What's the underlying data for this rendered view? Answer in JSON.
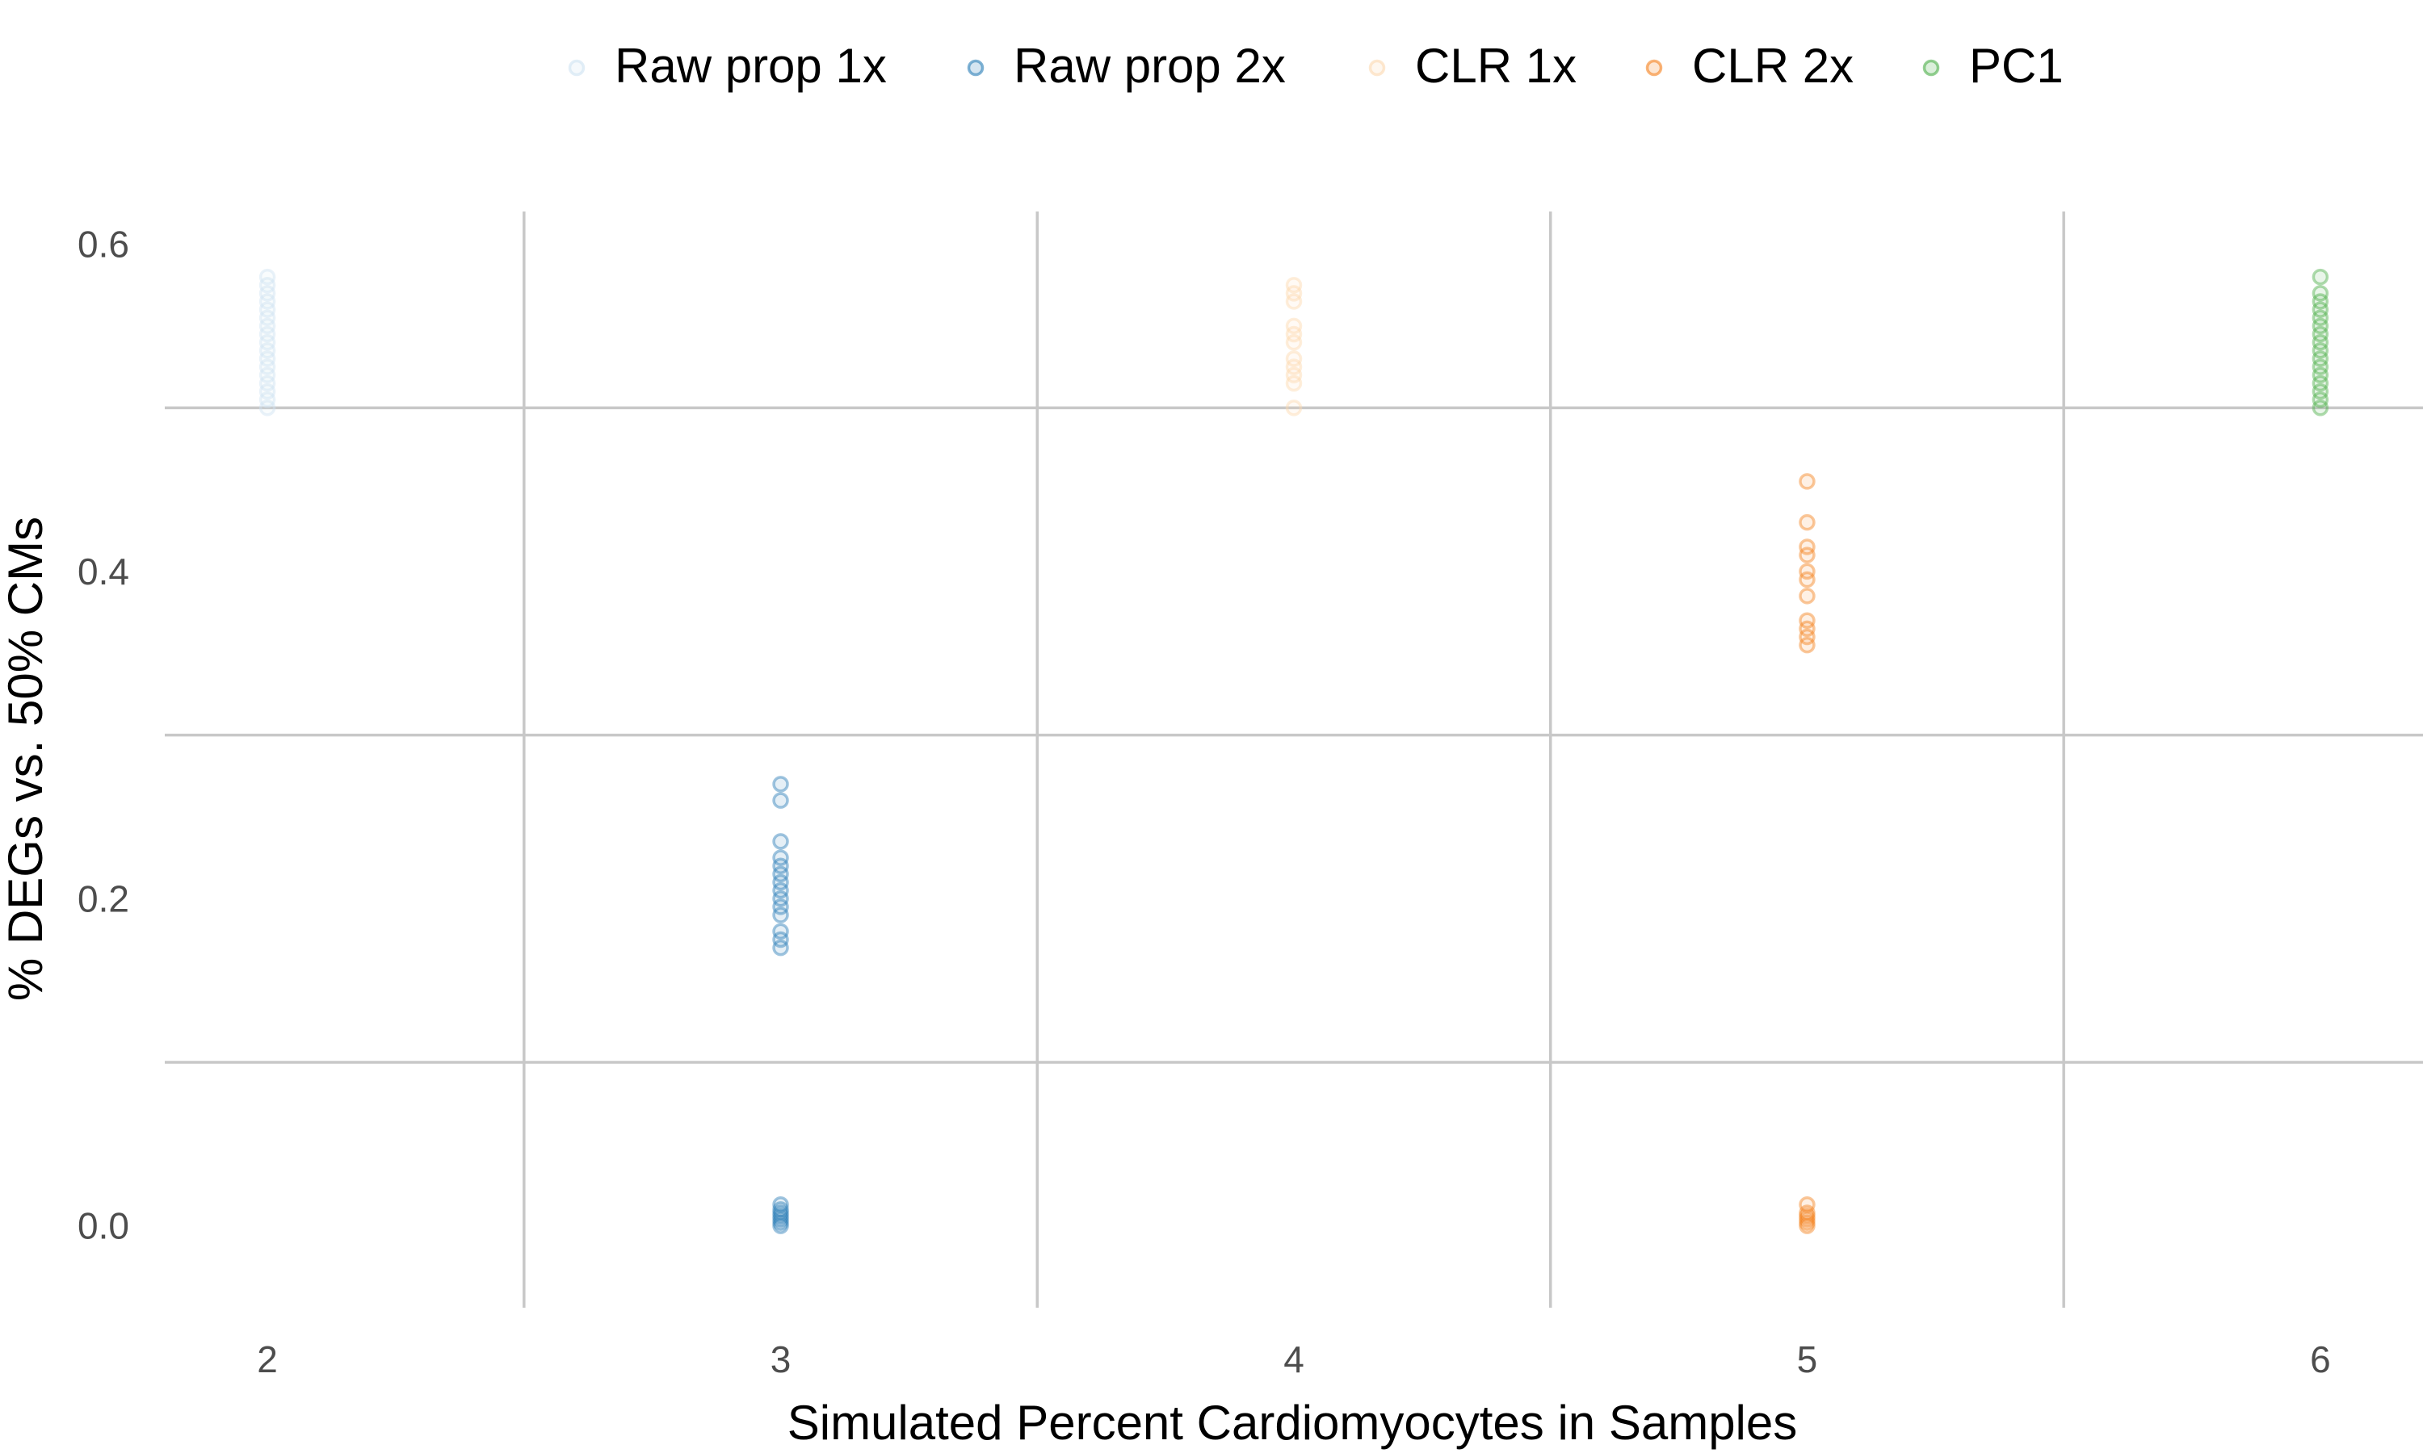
{
  "chart_data": {
    "type": "scatter",
    "title": "",
    "xlabel": "Simulated Percent Cardiomyocytes in Samples",
    "ylabel": "% DEGs vs. 50% CMs",
    "x_ticks": [
      "2",
      "3",
      "4",
      "5",
      "6"
    ],
    "y_ticks": [
      "0.0",
      "0.2",
      "0.4",
      "0.6"
    ],
    "xlim": [
      1.8,
      6.2
    ],
    "ylim": [
      -0.05,
      0.62
    ],
    "grid": true,
    "legend_position": "top",
    "series": [
      {
        "name": "Raw prop 1x",
        "color": "#cfe3f2",
        "x": 2,
        "values": [
          0.5,
          0.505,
          0.51,
          0.515,
          0.52,
          0.525,
          0.53,
          0.535,
          0.54,
          0.545,
          0.55,
          0.555,
          0.56,
          0.565,
          0.57,
          0.575,
          0.58
        ]
      },
      {
        "name": "Raw prop 2x",
        "color": "#2c7fb8",
        "x": 3,
        "values": [
          0.0,
          0.002,
          0.004,
          0.006,
          0.008,
          0.01,
          0.013,
          0.17,
          0.175,
          0.18,
          0.19,
          0.195,
          0.2,
          0.205,
          0.21,
          0.215,
          0.22,
          0.225,
          0.235,
          0.26,
          0.27
        ]
      },
      {
        "name": "CLR 1x",
        "color": "#fcd9b0",
        "x": 4,
        "values": [
          0.5,
          0.515,
          0.52,
          0.525,
          0.53,
          0.54,
          0.545,
          0.55,
          0.565,
          0.57,
          0.575
        ]
      },
      {
        "name": "CLR 2x",
        "color": "#f58220",
        "x": 5,
        "values": [
          0.0,
          0.002,
          0.004,
          0.006,
          0.008,
          0.013,
          0.355,
          0.36,
          0.365,
          0.37,
          0.385,
          0.395,
          0.4,
          0.41,
          0.415,
          0.43,
          0.455
        ]
      },
      {
        "name": "PC1",
        "color": "#4daf4a",
        "x": 6,
        "values": [
          0.5,
          0.505,
          0.51,
          0.515,
          0.52,
          0.525,
          0.53,
          0.535,
          0.54,
          0.545,
          0.55,
          0.555,
          0.56,
          0.565,
          0.57,
          0.58
        ]
      }
    ]
  }
}
